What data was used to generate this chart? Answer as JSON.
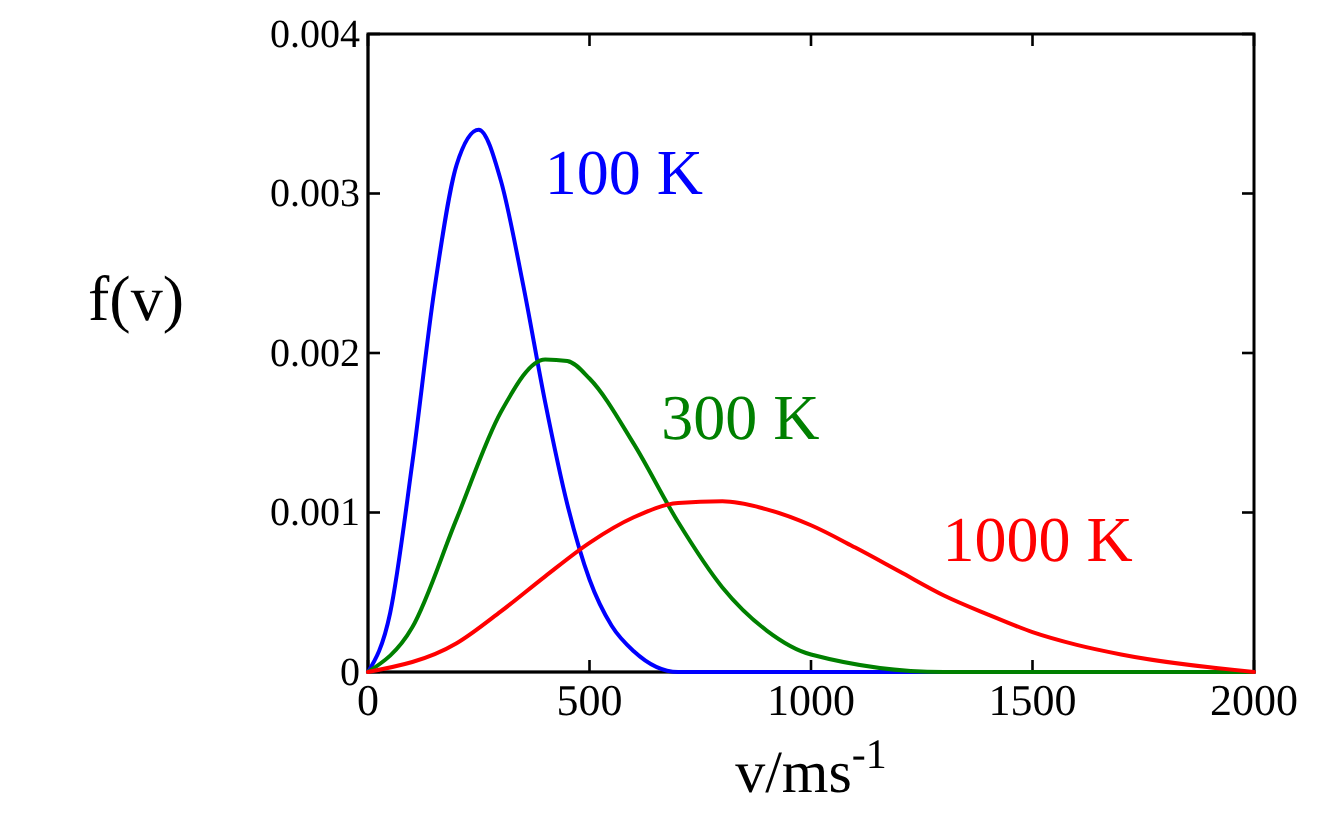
{
  "chart_data": {
    "type": "line",
    "xlabel": "v/ms$^{-1}$",
    "ylabel": "f(v)",
    "xlim": [
      0,
      2000
    ],
    "ylim": [
      0,
      0.004
    ],
    "xticks": [
      0,
      500,
      1000,
      1500,
      2000
    ],
    "yticks": [
      0,
      0.001,
      0.002,
      0.003,
      0.004
    ],
    "grid": false,
    "legend": false,
    "marker": "none",
    "line_style": "solid",
    "series": [
      {
        "name": "100 K",
        "color": "#0000ff",
        "x": [
          0,
          50,
          100,
          150,
          200,
          250,
          300,
          350,
          400,
          450,
          500,
          550,
          600,
          700,
          800,
          1000,
          2000
        ],
        "values": [
          0,
          0.00037,
          0.00131,
          0.0024,
          0.00318,
          0.0034,
          0.00308,
          0.00243,
          0.00169,
          0.00105,
          0.00058,
          0.00029,
          0.00013,
          0,
          0,
          0,
          0
        ]
      },
      {
        "name": "300 K",
        "color": "#008000",
        "x": [
          0,
          100,
          200,
          300,
          400,
          450,
          500,
          600,
          700,
          800,
          900,
          1000,
          1300,
          2000
        ],
        "values": [
          0,
          0.00028,
          0.00096,
          0.00163,
          0.00196,
          0.00195,
          0.00184,
          0.00143,
          0.00094,
          0.00053,
          0.00026,
          0.00011,
          0,
          0
        ]
      },
      {
        "name": "1000 K",
        "color": "#ff0000",
        "x": [
          0,
          200,
          300,
          400,
          500,
          600,
          700,
          800,
          900,
          1000,
          1100,
          1200,
          1300,
          1400,
          1500,
          1600,
          1700,
          2000
        ],
        "values": [
          0,
          0.00018,
          0.00038,
          0.0006,
          0.00081,
          0.00097,
          0.00106,
          0.00107,
          0.00102,
          0.00092,
          0.00078,
          0.00063,
          0.00048,
          0.00036,
          0.00025,
          0.00017,
          0.00011,
          0
        ]
      }
    ]
  }
}
